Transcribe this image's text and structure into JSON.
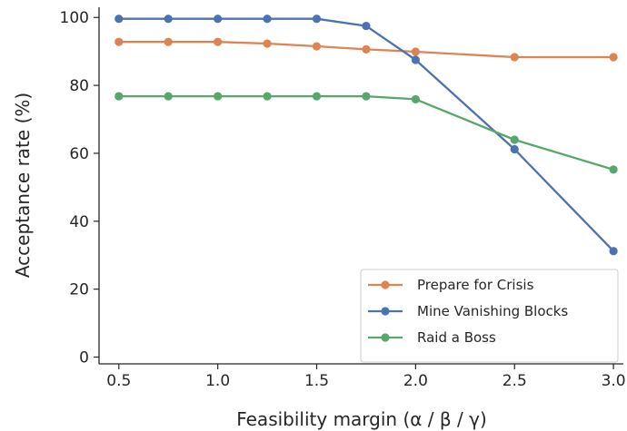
{
  "chart_data": {
    "type": "line",
    "xlabel": "Feasibility margin (α / β / γ)",
    "ylabel": "Acceptance rate (%)",
    "xlim": [
      0.4,
      3.05
    ],
    "ylim": [
      -2,
      103
    ],
    "xticks": [
      0.5,
      1.0,
      1.5,
      2.0,
      2.5,
      3.0
    ],
    "xtick_labels": [
      "0.5",
      "1.0",
      "1.5",
      "2.0",
      "2.5",
      "3.0"
    ],
    "yticks": [
      0,
      20,
      40,
      60,
      80,
      100
    ],
    "ytick_labels": [
      "0",
      "20",
      "40",
      "60",
      "80",
      "100"
    ],
    "grid": false,
    "legend_position": "bottom-right",
    "series": [
      {
        "name": "Prepare for Crisis",
        "color": "#dd8452",
        "x": [
          0.5,
          0.75,
          1.0,
          1.25,
          1.5,
          1.75,
          2.0,
          2.5,
          3.0
        ],
        "y": [
          92.8,
          92.8,
          92.8,
          92.3,
          91.5,
          90.6,
          89.9,
          88.3,
          88.3
        ]
      },
      {
        "name": "Mine Vanishing Blocks",
        "color": "#4c72b0",
        "x": [
          0.5,
          0.75,
          1.0,
          1.25,
          1.5,
          1.75,
          2.0,
          2.5,
          3.0
        ],
        "y": [
          99.6,
          99.6,
          99.6,
          99.6,
          99.6,
          97.5,
          87.5,
          61.2,
          31.2
        ]
      },
      {
        "name": "Raid a Boss",
        "color": "#55a868",
        "x": [
          0.5,
          0.75,
          1.0,
          1.25,
          1.5,
          1.75,
          2.0,
          2.5,
          3.0
        ],
        "y": [
          76.8,
          76.8,
          76.8,
          76.8,
          76.8,
          76.8,
          75.9,
          64.0,
          55.2
        ]
      }
    ]
  }
}
